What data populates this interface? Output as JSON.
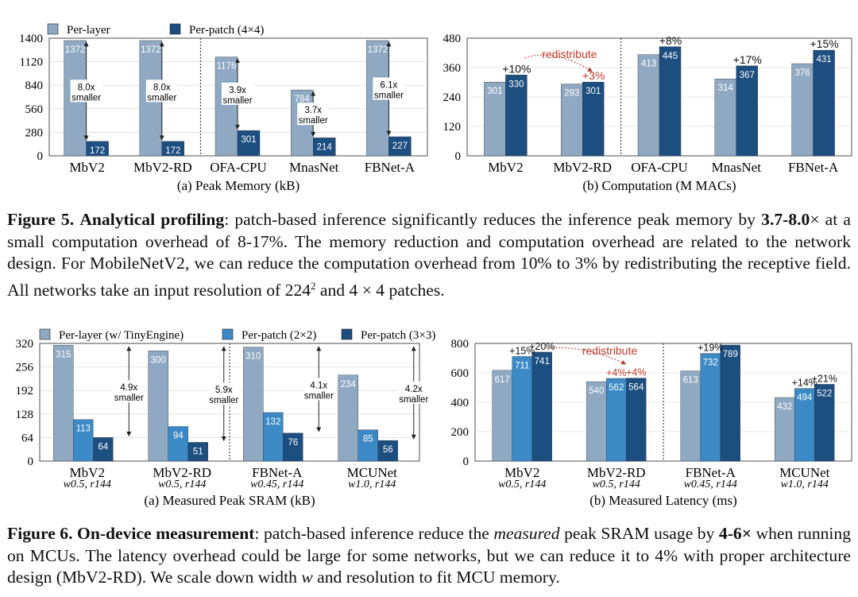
{
  "figure5": {
    "legend": {
      "a": "Per-layer",
      "b": "Per-patch (4×4)"
    },
    "caption_label": "Figure 5.",
    "caption_lead": "Analytical profiling",
    "caption_part1": ": patch-based inference significantly reduces the inference peak memory by ",
    "caption_range": "3.7-8.0",
    "caption_part2": "× at a small computation overhead of 8-17%. The memory reduction and computation overhead are related to the network design. For MobileNetV2, we can reduce the computation overhead from 10% to 3% by redistributing the receptive field. All networks take an input resolution of ",
    "caption_res": "224",
    "caption_sup": "2",
    "caption_part3": " and 4 × 4 patches."
  },
  "figure6": {
    "legend": {
      "a": "Per-layer (w/ TinyEngine)",
      "b": "Per-patch (2×2)",
      "c": "Per-patch (3×3)"
    },
    "caption_label": "Figure 6.",
    "caption_lead": "On-device measurement",
    "caption_part1": ": patch-based inference reduce the ",
    "caption_em": "measured",
    "caption_part2": " peak SRAM usage by ",
    "caption_range": "4-6×",
    "caption_part3": " when running on MCUs. The latency overhead could be large for some networks, but we can reduce it to 4% with proper architecture design (MbV2-RD). We scale down width ",
    "caption_w": "w",
    "caption_part4": " and resolution to fit MCU memory."
  },
  "colors": {
    "perlayer": "#8fa9c2",
    "patch2": "#3b8ac6",
    "patch4": "#1c4e80",
    "red": "#c0392b"
  },
  "chart_data": [
    {
      "id": "fig5a",
      "type": "bar",
      "title": "(a) Peak Memory (kB)",
      "categories": [
        "MbV2",
        "MbV2-RD",
        "OFA-CPU",
        "MnasNet",
        "FBNet-A"
      ],
      "series": [
        {
          "name": "Per-layer",
          "values": [
            1372,
            1372,
            1176,
            784,
            1372
          ]
        },
        {
          "name": "Per-patch (4×4)",
          "values": [
            172,
            172,
            301,
            214,
            227
          ]
        }
      ],
      "yticks": [
        0,
        280,
        560,
        840,
        1120,
        1400
      ],
      "ylim": [
        0,
        1400
      ],
      "annotations": [
        {
          "top": "8.0x",
          "bottom": "smaller"
        },
        {
          "top": "8.0x",
          "bottom": "smaller"
        },
        {
          "top": "3.9x",
          "bottom": "smaller"
        },
        {
          "top": "3.7x",
          "bottom": "smaller"
        },
        {
          "top": "6.1x",
          "bottom": "smaller"
        }
      ]
    },
    {
      "id": "fig5b",
      "type": "bar",
      "title": "(b) Computation (M MACs)",
      "categories": [
        "MbV2",
        "MbV2-RD",
        "OFA-CPU",
        "MnasNet",
        "FBNet-A"
      ],
      "series": [
        {
          "name": "Per-layer",
          "values": [
            301,
            293,
            413,
            314,
            376
          ]
        },
        {
          "name": "Per-patch (4×4)",
          "values": [
            330,
            301,
            445,
            367,
            431
          ]
        }
      ],
      "yticks": [
        0,
        120,
        240,
        360,
        480
      ],
      "ylim": [
        0,
        480
      ],
      "overheads": [
        "+10%",
        "+3%",
        "+8%",
        "+17%",
        "+15%"
      ],
      "redistribute_label": "redistribute"
    },
    {
      "id": "fig6a",
      "type": "bar",
      "title": "(a) Measured Peak SRAM (kB)",
      "categories": [
        "MbV2",
        "MbV2-RD",
        "FBNet-A",
        "MCUNet"
      ],
      "subcategories": [
        "w0.5, r144",
        "w0.5, r144",
        "w0.45, r144",
        "w1.0, r144"
      ],
      "series": [
        {
          "name": "Per-layer (w/ TinyEngine)",
          "values": [
            315,
            300,
            310,
            234
          ]
        },
        {
          "name": "Per-patch (2×2)",
          "values": [
            113,
            94,
            132,
            85
          ]
        },
        {
          "name": "Per-patch (3×3)",
          "values": [
            64,
            51,
            76,
            56
          ]
        }
      ],
      "yticks": [
        0,
        64,
        128,
        192,
        256,
        320
      ],
      "ylim": [
        0,
        320
      ],
      "annotations": [
        {
          "top": "4.9x",
          "bottom": "smaller"
        },
        {
          "top": "5.9x",
          "bottom": "smaller"
        },
        {
          "top": "4.1x",
          "bottom": "smaller"
        },
        {
          "top": "4.2x",
          "bottom": "smaller"
        }
      ]
    },
    {
      "id": "fig6b",
      "type": "bar",
      "title": "(b) Measured Latency (ms)",
      "categories": [
        "MbV2",
        "MbV2-RD",
        "FBNet-A",
        "MCUNet"
      ],
      "subcategories": [
        "w0.5, r144",
        "w0.5, r144",
        "w0.45, r144",
        "w1.0, r144"
      ],
      "series": [
        {
          "name": "Per-layer (w/ TinyEngine)",
          "values": [
            617,
            540,
            613,
            432
          ]
        },
        {
          "name": "Per-patch (2×2)",
          "values": [
            711,
            562,
            732,
            494
          ]
        },
        {
          "name": "Per-patch (3×3)",
          "values": [
            741,
            564,
            789,
            522
          ]
        }
      ],
      "yticks": [
        0,
        200,
        400,
        600,
        800
      ],
      "ylim": [
        0,
        800
      ],
      "overheads2": [
        "+15%",
        "+4%",
        "+19%",
        "+14%"
      ],
      "overheads3": [
        "+20%",
        "+4%",
        "",
        "+21%"
      ],
      "redistribute_label": "redistribute"
    }
  ]
}
